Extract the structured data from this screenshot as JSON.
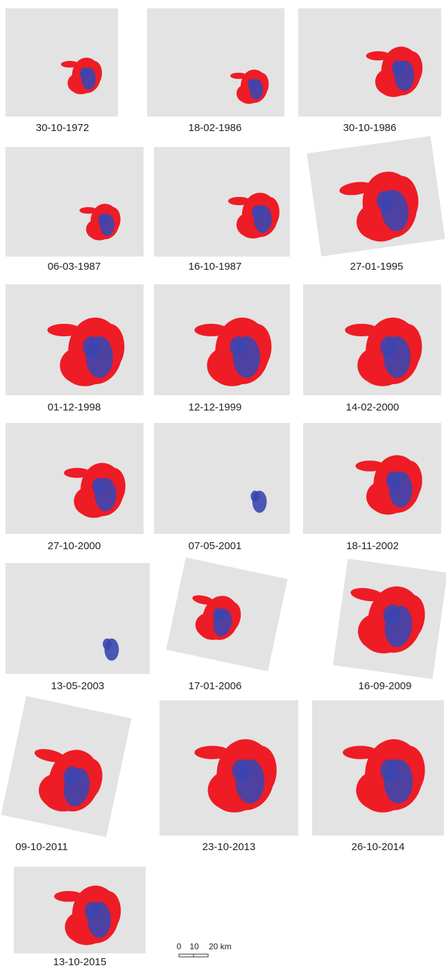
{
  "panels": [
    {
      "date": "30-10-1972"
    },
    {
      "date": "18-02-1986"
    },
    {
      "date": "30-10-1986"
    },
    {
      "date": "06-03-1987"
    },
    {
      "date": "16-10-1987"
    },
    {
      "date": "27-01-1995"
    },
    {
      "date": "01-12-1998"
    },
    {
      "date": "12-12-1999"
    },
    {
      "date": "14-02-2000"
    },
    {
      "date": "27-10-2000"
    },
    {
      "date": "07-05-2001"
    },
    {
      "date": "18-11-2002"
    },
    {
      "date": "13-05-2003"
    },
    {
      "date": "17-01-2006"
    },
    {
      "date": "16-09-2009"
    },
    {
      "date": "09-10-2011"
    },
    {
      "date": "23-10-2013"
    },
    {
      "date": "26-10-2014"
    },
    {
      "date": "13-10-2015"
    }
  ],
  "scale_bar": {
    "labels": [
      "0",
      "10",
      "20 km"
    ]
  }
}
